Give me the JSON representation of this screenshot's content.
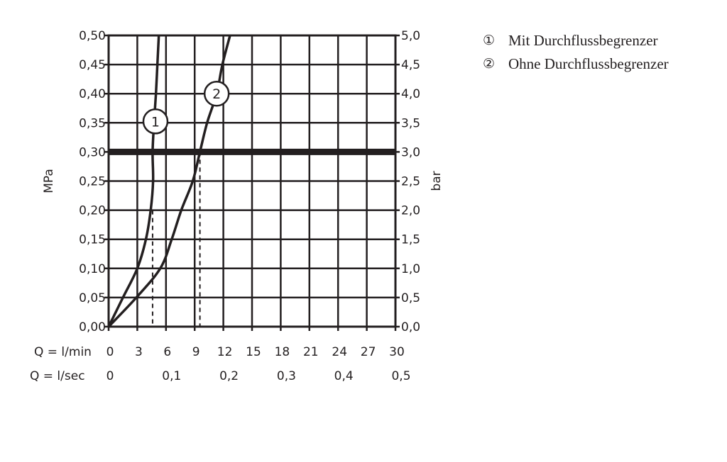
{
  "chart_data": {
    "type": "line",
    "ylabel_left": "MPa",
    "ylabel_right": "bar",
    "xlabel_lmin": "Q = l/min",
    "xlabel_lsec": "Q = l/sec",
    "xlim": [
      0,
      30
    ],
    "ylim": [
      0,
      0.5
    ],
    "grid": true,
    "x_ticks": [
      "0",
      "3",
      "6",
      "9",
      "12",
      "15",
      "18",
      "21",
      "24",
      "27",
      "30"
    ],
    "x_tick_values": [
      0,
      3,
      6,
      9,
      12,
      15,
      18,
      21,
      24,
      27,
      30
    ],
    "x2_ticks": [
      "0",
      "0,1",
      "0,2",
      "0,3",
      "0,4",
      "0,5"
    ],
    "x2_tick_values": [
      0,
      6,
      12,
      18,
      24,
      30
    ],
    "y_ticks_left": [
      "0,00",
      "0,05",
      "0,10",
      "0,15",
      "0,20",
      "0,25",
      "0,30",
      "0,35",
      "0,40",
      "0,45",
      "0,50"
    ],
    "y_ticks_right": [
      "0,0",
      "0,5",
      "1,0",
      "1,5",
      "2,0",
      "2,5",
      "3,0",
      "3,5",
      "4,0",
      "4,5",
      "5,0"
    ],
    "y_tick_values": [
      0,
      0.05,
      0.1,
      0.15,
      0.2,
      0.25,
      0.3,
      0.35,
      0.4,
      0.45,
      0.5
    ],
    "reference_line_y": 0.3,
    "series": [
      {
        "name": "1",
        "points": [
          [
            0,
            0
          ],
          [
            1.5,
            0.05
          ],
          [
            3.0,
            0.1
          ],
          [
            3.9,
            0.15
          ],
          [
            4.4,
            0.2
          ],
          [
            4.65,
            0.25
          ],
          [
            4.6,
            0.3
          ],
          [
            4.75,
            0.35
          ],
          [
            4.95,
            0.4
          ],
          [
            5.1,
            0.45
          ],
          [
            5.25,
            0.5
          ]
        ],
        "marker_y": 0.35,
        "drop_x": 4.6,
        "drop_from": 0.2
      },
      {
        "name": "2",
        "points": [
          [
            0,
            0
          ],
          [
            2.9,
            0.05
          ],
          [
            5.4,
            0.1
          ],
          [
            6.6,
            0.15
          ],
          [
            7.6,
            0.2
          ],
          [
            8.8,
            0.25
          ],
          [
            9.55,
            0.3
          ],
          [
            10.3,
            0.35
          ],
          [
            11.3,
            0.4
          ],
          [
            11.9,
            0.45
          ],
          [
            12.7,
            0.5
          ]
        ],
        "marker_y": 0.4,
        "drop_x": 9.55,
        "drop_from": 0.3
      }
    ],
    "legend": [
      {
        "symbol": "①",
        "text": "Mit Durchflussbegrenzer"
      },
      {
        "symbol": "②",
        "text": "Ohne Durchflussbegrenzer"
      }
    ],
    "legend_placement": "right",
    "color": "#231f20"
  }
}
